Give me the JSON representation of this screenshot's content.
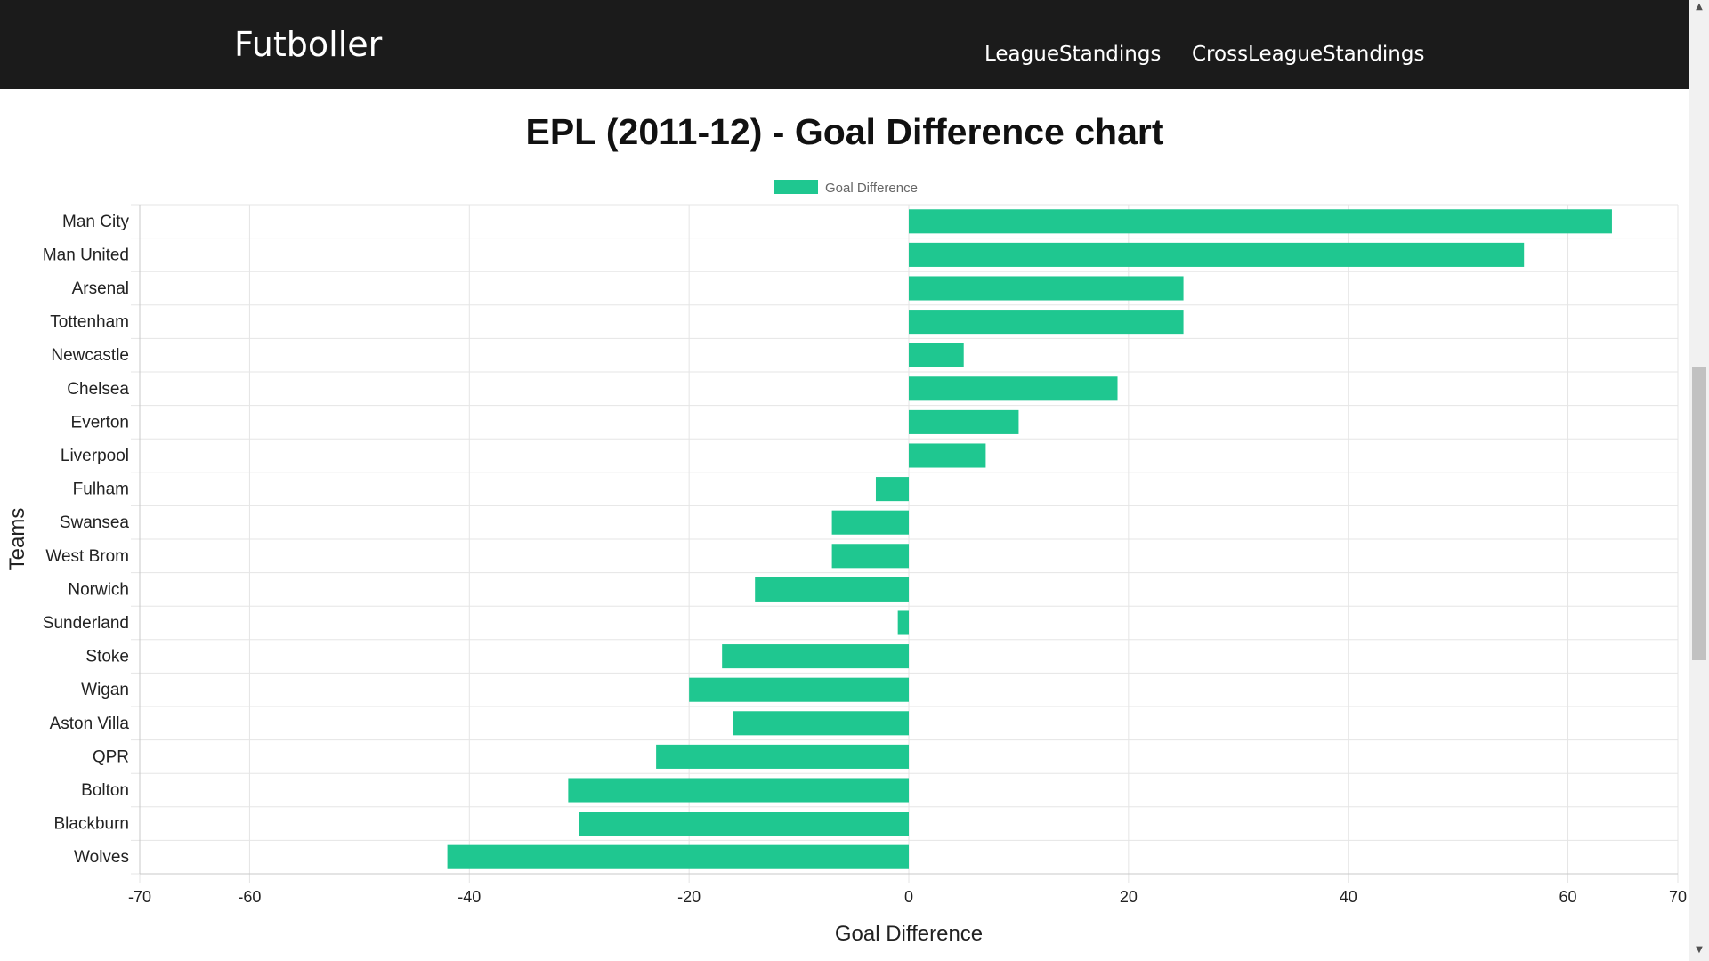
{
  "navbar": {
    "brand": "Futboller",
    "links": [
      "LeagueStandings",
      "CrossLeagueStandings"
    ]
  },
  "colors": {
    "navbar_bg": "#1b1b1b",
    "bar": "#1fc790",
    "grid": "#e5e5e5"
  },
  "chart_data": {
    "type": "bar",
    "orientation": "horizontal",
    "title": "EPL (2011-12) - Goal Difference chart",
    "xlabel": "Goal Difference",
    "ylabel": "Teams",
    "xlim": [
      -70,
      70
    ],
    "xticks": [
      -70,
      -60,
      -40,
      -20,
      0,
      20,
      40,
      60,
      70
    ],
    "grid": true,
    "legend_position": "top-center",
    "categories": [
      "Man City",
      "Man United",
      "Arsenal",
      "Tottenham",
      "Newcastle",
      "Chelsea",
      "Everton",
      "Liverpool",
      "Fulham",
      "Swansea",
      "West Brom",
      "Norwich",
      "Sunderland",
      "Stoke",
      "Wigan",
      "Aston Villa",
      "QPR",
      "Bolton",
      "Blackburn",
      "Wolves"
    ],
    "series": [
      {
        "name": "Goal Difference",
        "color": "#1fc790",
        "values": [
          64,
          56,
          25,
          25,
          5,
          19,
          10,
          7,
          -3,
          -7,
          -7,
          -14,
          -1,
          -17,
          -20,
          -16,
          -23,
          -31,
          -30,
          -42
        ]
      }
    ]
  }
}
